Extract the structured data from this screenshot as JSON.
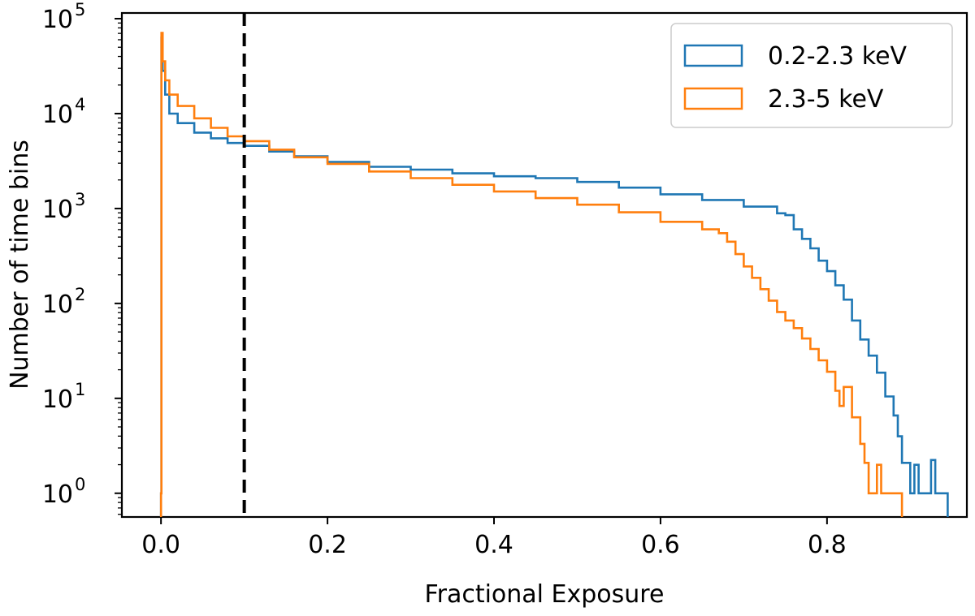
{
  "chart_data": {
    "type": "histogram-step",
    "title": "",
    "xlabel": "Fractional Exposure",
    "ylabel": "Number of time bins",
    "xlim": [
      -0.047,
      0.968
    ],
    "ylim_log10": [
      -0.25,
      5.06
    ],
    "yscale": "log",
    "x_ticks": [
      {
        "value": 0.0,
        "label": "0.0"
      },
      {
        "value": 0.2,
        "label": "0.2"
      },
      {
        "value": 0.4,
        "label": "0.4"
      },
      {
        "value": 0.6,
        "label": "0.6"
      },
      {
        "value": 0.8,
        "label": "0.8"
      }
    ],
    "y_ticks": [
      {
        "exp": 0,
        "base": "10",
        "sup": "0"
      },
      {
        "exp": 1,
        "base": "10",
        "sup": "1"
      },
      {
        "exp": 2,
        "base": "10",
        "sup": "2"
      },
      {
        "exp": 3,
        "base": "10",
        "sup": "3"
      },
      {
        "exp": 4,
        "base": "10",
        "sup": "4"
      },
      {
        "exp": 5,
        "base": "10",
        "sup": "5"
      }
    ],
    "vline": {
      "x": 0.1,
      "style": "dashed",
      "color": "#000000"
    },
    "legend": {
      "position": "top-right"
    },
    "series": [
      {
        "name": "0.2-2.3 keV",
        "color": "#1f77b4",
        "points": [
          [
            0.0,
            0.0
          ],
          [
            0.0005,
            4.8
          ],
          [
            0.002,
            4.45
          ],
          [
            0.005,
            4.2
          ],
          [
            0.01,
            4.0
          ],
          [
            0.02,
            3.9
          ],
          [
            0.04,
            3.8
          ],
          [
            0.06,
            3.74
          ],
          [
            0.08,
            3.69
          ],
          [
            0.1,
            3.66
          ],
          [
            0.13,
            3.6
          ],
          [
            0.16,
            3.55
          ],
          [
            0.2,
            3.49
          ],
          [
            0.25,
            3.44
          ],
          [
            0.3,
            3.41
          ],
          [
            0.35,
            3.37
          ],
          [
            0.4,
            3.34
          ],
          [
            0.45,
            3.32
          ],
          [
            0.5,
            3.28
          ],
          [
            0.55,
            3.22
          ],
          [
            0.6,
            3.15
          ],
          [
            0.65,
            3.09
          ],
          [
            0.7,
            3.02
          ],
          [
            0.74,
            2.95
          ],
          [
            0.75,
            2.93
          ],
          [
            0.76,
            2.78
          ],
          [
            0.77,
            2.68
          ],
          [
            0.78,
            2.58
          ],
          [
            0.79,
            2.45
          ],
          [
            0.8,
            2.34
          ],
          [
            0.81,
            2.19
          ],
          [
            0.82,
            2.04
          ],
          [
            0.83,
            1.82
          ],
          [
            0.84,
            1.62
          ],
          [
            0.85,
            1.45
          ],
          [
            0.86,
            1.27
          ],
          [
            0.87,
            1.02
          ],
          [
            0.88,
            0.82
          ],
          [
            0.885,
            0.6
          ],
          [
            0.89,
            0.32
          ],
          [
            0.9,
            0.0
          ],
          [
            0.905,
            0.3
          ],
          [
            0.91,
            0.0
          ],
          [
            0.92,
            0.0
          ],
          [
            0.925,
            0.35
          ],
          [
            0.93,
            0.0
          ],
          [
            0.94,
            0.0
          ],
          [
            0.945,
            0.0
          ]
        ]
      },
      {
        "name": "2.3-5 keV",
        "color": "#ff7f0e",
        "points": [
          [
            0.0,
            0.0
          ],
          [
            0.0005,
            4.85
          ],
          [
            0.002,
            4.55
          ],
          [
            0.005,
            4.35
          ],
          [
            0.01,
            4.2
          ],
          [
            0.02,
            4.08
          ],
          [
            0.04,
            3.95
          ],
          [
            0.06,
            3.85
          ],
          [
            0.08,
            3.76
          ],
          [
            0.1,
            3.71
          ],
          [
            0.13,
            3.62
          ],
          [
            0.16,
            3.54
          ],
          [
            0.2,
            3.47
          ],
          [
            0.25,
            3.39
          ],
          [
            0.3,
            3.32
          ],
          [
            0.35,
            3.25
          ],
          [
            0.4,
            3.18
          ],
          [
            0.45,
            3.11
          ],
          [
            0.5,
            3.04
          ],
          [
            0.55,
            2.96
          ],
          [
            0.6,
            2.86
          ],
          [
            0.65,
            2.78
          ],
          [
            0.67,
            2.74
          ],
          [
            0.68,
            2.65
          ],
          [
            0.69,
            2.52
          ],
          [
            0.7,
            2.39
          ],
          [
            0.71,
            2.27
          ],
          [
            0.72,
            2.15
          ],
          [
            0.73,
            2.03
          ],
          [
            0.74,
            1.91
          ],
          [
            0.75,
            1.82
          ],
          [
            0.76,
            1.74
          ],
          [
            0.77,
            1.63
          ],
          [
            0.78,
            1.52
          ],
          [
            0.79,
            1.4
          ],
          [
            0.8,
            1.28
          ],
          [
            0.81,
            1.08
          ],
          [
            0.815,
            0.92
          ],
          [
            0.82,
            1.12
          ],
          [
            0.83,
            0.8
          ],
          [
            0.84,
            0.52
          ],
          [
            0.845,
            0.32
          ],
          [
            0.85,
            0.0
          ],
          [
            0.86,
            0.3
          ],
          [
            0.865,
            0.0
          ],
          [
            0.87,
            0.0
          ],
          [
            0.88,
            0.0
          ],
          [
            0.89,
            0.0
          ]
        ]
      }
    ]
  }
}
